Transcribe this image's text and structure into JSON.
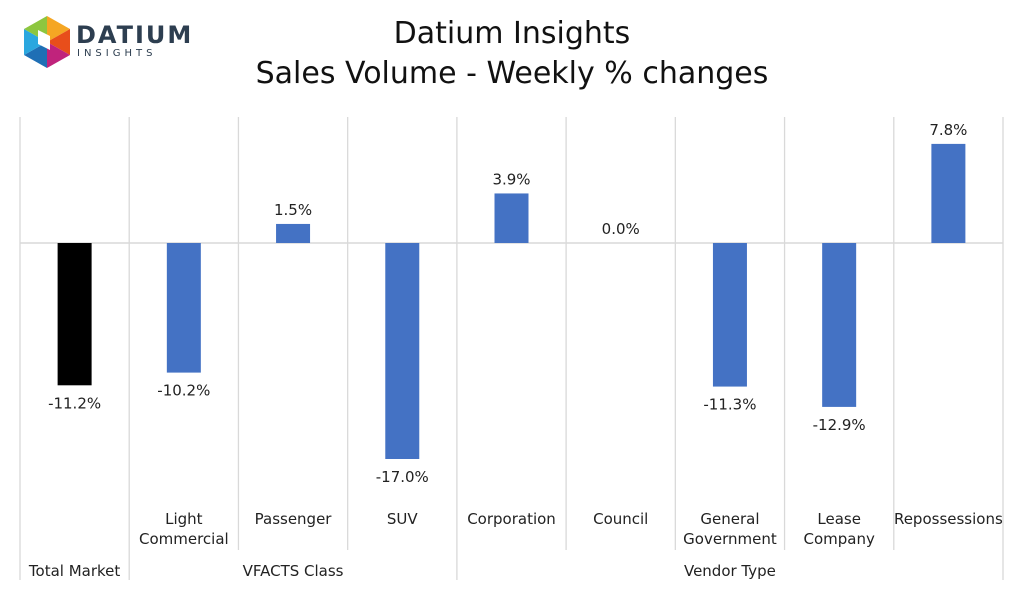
{
  "header": {
    "logo_word": "DATIUM",
    "logo_sub": "INSIGHTS",
    "title_line1": "Datium Insights",
    "title_line2": "Sales Volume - Weekly % changes"
  },
  "chart_data": {
    "type": "bar",
    "categories": [
      [
        "Total Market"
      ],
      [
        "Light",
        "Commercial"
      ],
      [
        "Passenger"
      ],
      [
        "SUV"
      ],
      [
        "Corporation"
      ],
      [
        "Council"
      ],
      [
        "General",
        "Government"
      ],
      [
        "Lease",
        "Company"
      ],
      [
        "Repossessions"
      ]
    ],
    "values": [
      -11.2,
      -10.2,
      1.5,
      -17.0,
      3.9,
      0.0,
      -11.3,
      -12.9,
      7.8
    ],
    "value_labels": [
      "-11.2%",
      "-10.2%",
      "1.5%",
      "-17.0%",
      "3.9%",
      "0.0%",
      "-11.3%",
      "-12.9%",
      "7.8%"
    ],
    "bar_colors": [
      "#000000",
      "#4472c4",
      "#4472c4",
      "#4472c4",
      "#4472c4",
      "#4472c4",
      "#4472c4",
      "#4472c4",
      "#4472c4"
    ],
    "groups": [
      {
        "label": "Total Market",
        "span": 1
      },
      {
        "label": "VFACTS Class",
        "span": 3
      },
      {
        "label": "Vendor Type",
        "span": 5
      }
    ],
    "ylim": [
      -20,
      10
    ],
    "grid": false,
    "legend": "none"
  }
}
